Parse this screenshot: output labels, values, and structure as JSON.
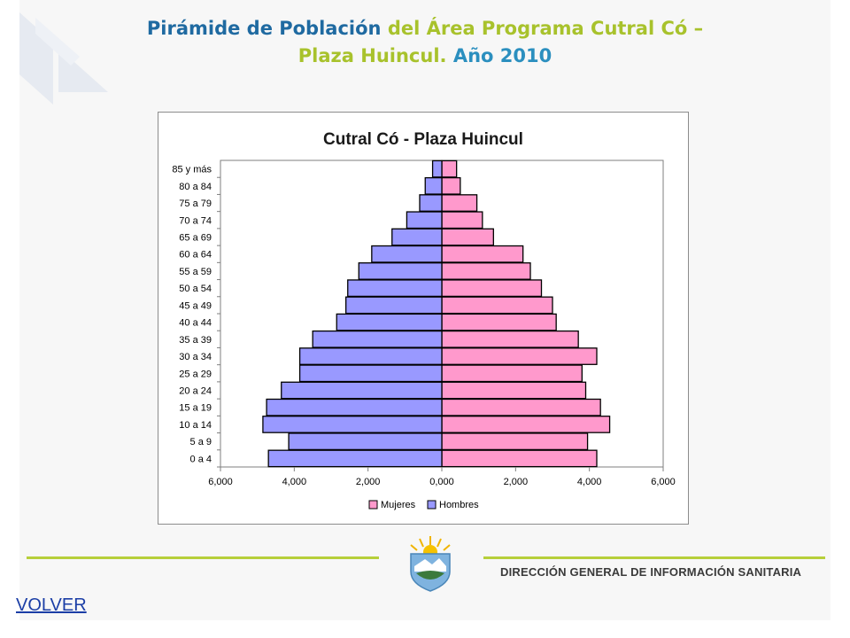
{
  "slide": {
    "title_part1": "Pirámide de Población",
    "title_part2": "del Área Programa Cutral Có –",
    "title_part3": "Plaza Huincul.",
    "title_part4": "Año 2010"
  },
  "footer": {
    "org_name": "DIRECCIÓN GENERAL DE INFORMACIÓN SANITARIA",
    "back_link": "VOLVER"
  },
  "colors": {
    "mujeres": "#ff99cc",
    "hombres": "#9999ff",
    "title_blue": "#1f6aa1",
    "title_green": "#a8c22c"
  },
  "chart_data": {
    "type": "bar",
    "orientation": "horizontal-population-pyramid",
    "title": "Cutral Có - Plaza Huincul",
    "categories": [
      "0 a 4",
      "5 a 9",
      "10 a 14",
      "15 a 19",
      "20 a 24",
      "25 a 29",
      "30 a 34",
      "35 a 39",
      "40 a 44",
      "45 a 49",
      "50 a 54",
      "55 a 59",
      "60 a 64",
      "65 a 69",
      "70 a 74",
      "75 a 79",
      "80 a 84",
      "85 y más"
    ],
    "series": [
      {
        "name": "Mujeres",
        "side": "right",
        "values": [
          4200,
          3950,
          4550,
          4300,
          3900,
          3800,
          4200,
          3700,
          3100,
          3000,
          2700,
          2400,
          2200,
          1400,
          1100,
          950,
          500,
          400
        ]
      },
      {
        "name": "Hombres",
        "side": "left",
        "values": [
          4700,
          4150,
          4850,
          4750,
          4350,
          3850,
          3850,
          3500,
          2850,
          2600,
          2550,
          2250,
          1900,
          1350,
          950,
          600,
          450,
          250
        ]
      }
    ],
    "xlim": [
      -6000,
      6000
    ],
    "x_ticks": [
      -6000,
      -4000,
      -2000,
      0,
      2000,
      4000,
      6000
    ],
    "x_tick_labels": [
      "6,000",
      "4,000",
      "2,000",
      "0,000",
      "2,000",
      "4,000",
      "6,000"
    ],
    "xlabel": "",
    "ylabel": "",
    "grid": false,
    "legend_position": "bottom"
  }
}
